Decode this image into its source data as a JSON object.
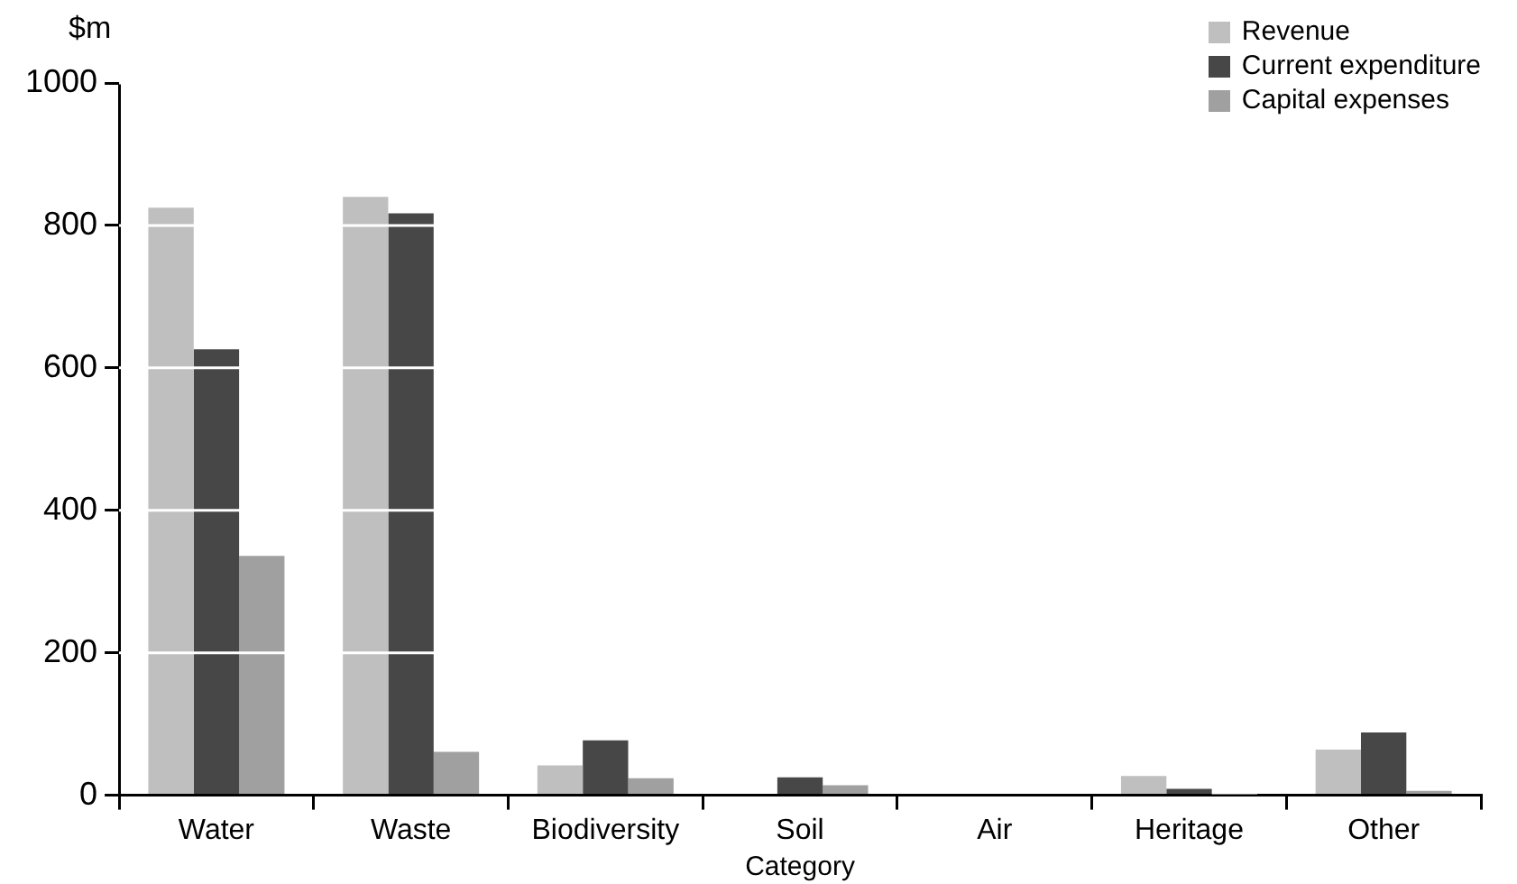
{
  "chart_data": {
    "type": "bar",
    "xlabel": "Category",
    "ylabel": "$m",
    "categories": [
      "Water",
      "Waste",
      "Biodiversity",
      "Soil",
      "Air",
      "Heritage",
      "Other"
    ],
    "series": [
      {
        "name": "Revenue",
        "color": "#bfbfbf",
        "values": [
          825,
          840,
          42,
          null,
          0,
          27,
          64
        ]
      },
      {
        "name": "Current expenditure",
        "color": "#474747",
        "values": [
          626,
          817,
          77,
          25,
          2,
          9,
          88
        ]
      },
      {
        "name": "Capital expenses",
        "color": "#a0a0a0",
        "values": [
          336,
          61,
          24,
          14,
          0,
          1,
          6
        ]
      }
    ],
    "ylim": [
      0,
      1000
    ],
    "yticks": [
      0,
      200,
      400,
      600,
      800,
      1000
    ],
    "grid": "y",
    "legend": "top right"
  }
}
